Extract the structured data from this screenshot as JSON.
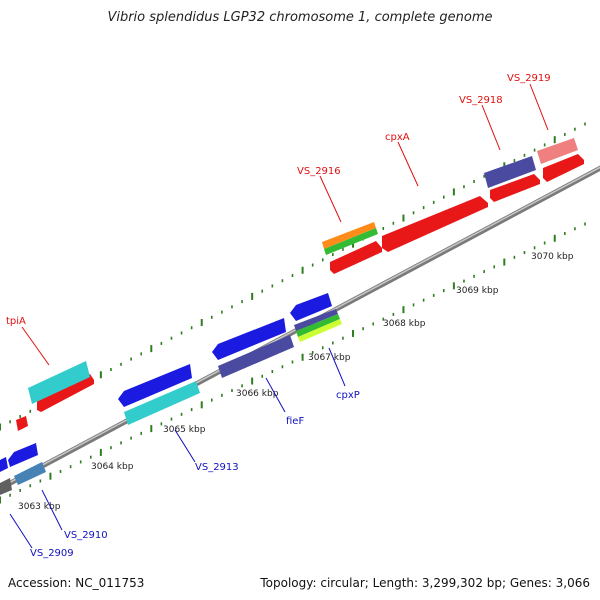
{
  "title": "Vibrio splendidus LGP32 chromosome 1, complete genome",
  "footer": {
    "accession": "Accession: NC_011753",
    "summary": "Topology: circular; Length: 3,299,302 bp; Genes: 3,066"
  },
  "colors": {
    "backbone": "#8a8a8a",
    "tick": "#2e7d1e",
    "forward_label": "#e01010",
    "reverse_label": "#1010c0"
  },
  "ticks": [
    "3063 kbp",
    "3064 kbp",
    "3065 kbp",
    "3066 kbp",
    "3067 kbp",
    "3068 kbp",
    "3069 kbp",
    "3070 kbp"
  ],
  "genes_forward": [
    {
      "label": "tpiA"
    },
    {
      "label": "VS_2916"
    },
    {
      "label": "cpxA"
    },
    {
      "label": "VS_2918"
    },
    {
      "label": "VS_2919"
    }
  ],
  "genes_reverse": [
    {
      "label": "VS_2909"
    },
    {
      "label": "VS_2910"
    },
    {
      "label": "VS_2913"
    },
    {
      "label": "fieF"
    },
    {
      "label": "cpxP"
    }
  ]
}
